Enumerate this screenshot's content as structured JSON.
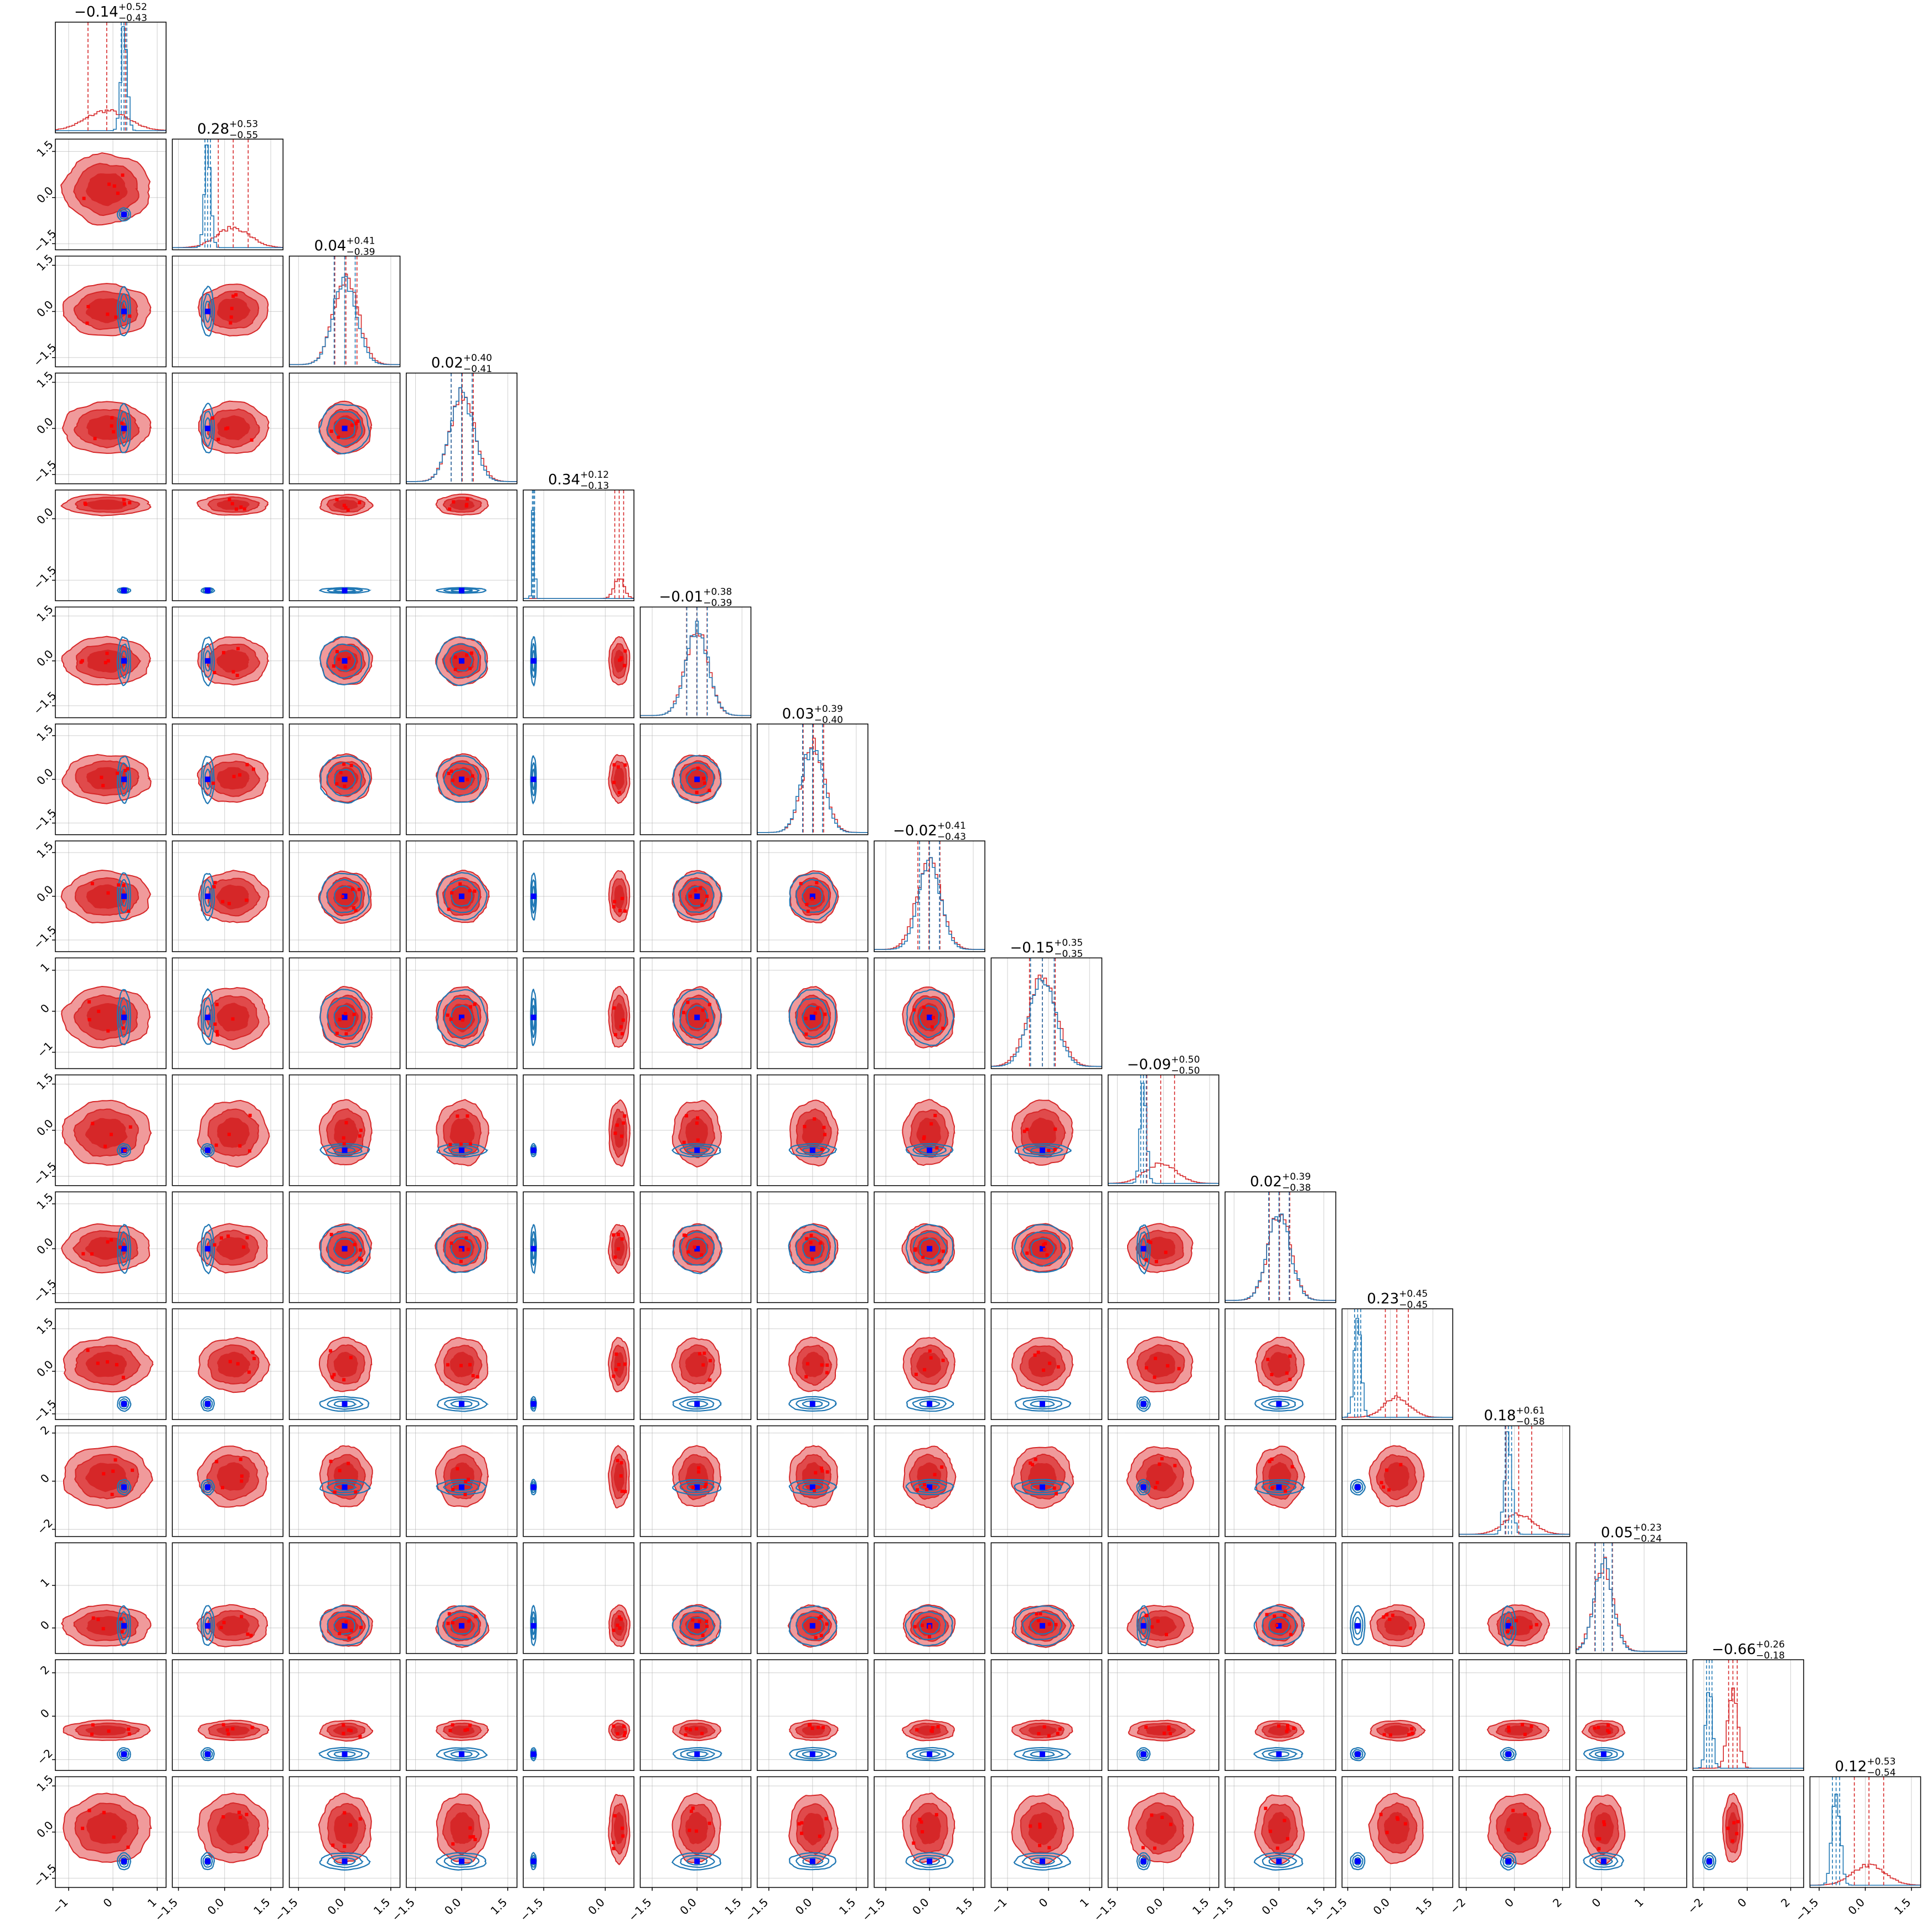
{
  "chart_data": {
    "type": "corner",
    "n_params": 16,
    "series": [
      {
        "name": "",
        "color": "#d62728"
      },
      {
        "name": "",
        "color": "#1f77b4"
      }
    ],
    "marker_color": "#0000ff",
    "grid": true,
    "titles": [
      {
        "median": "−0.14",
        "plus": "+0.52",
        "minus": "−0.43"
      },
      {
        "median": "0.28",
        "plus": "+0.53",
        "minus": "−0.55"
      },
      {
        "median": "0.04",
        "plus": "+0.41",
        "minus": "−0.39"
      },
      {
        "median": "0.02",
        "plus": "+0.40",
        "minus": "−0.41"
      },
      {
        "median": "0.34",
        "plus": "+0.12",
        "minus": "−0.13"
      },
      {
        "median": "−0.01",
        "plus": "+0.38",
        "minus": "−0.39"
      },
      {
        "median": "0.03",
        "plus": "+0.39",
        "minus": "−0.40"
      },
      {
        "median": "−0.02",
        "plus": "+0.41",
        "minus": "−0.43"
      },
      {
        "median": "−0.15",
        "plus": "+0.35",
        "minus": "−0.35"
      },
      {
        "median": "−0.09",
        "plus": "+0.50",
        "minus": "−0.50"
      },
      {
        "median": "0.02",
        "plus": "+0.39",
        "minus": "−0.38"
      },
      {
        "median": "0.23",
        "plus": "+0.45",
        "minus": "−0.45"
      },
      {
        "median": "0.18",
        "plus": "+0.61",
        "minus": "−0.58"
      },
      {
        "median": "0.05",
        "plus": "+0.23",
        "minus": "−0.24"
      },
      {
        "median": "−0.66",
        "plus": "+0.26",
        "minus": "−0.18"
      },
      {
        "median": "0.12",
        "plus": "+0.53",
        "minus": "−0.54"
      }
    ],
    "x_ticks": [
      [
        "−1",
        "0",
        "1"
      ],
      [
        "−1.5",
        "0.0",
        "1.5"
      ],
      [
        "−1.5",
        "0.0",
        "1.5"
      ],
      [
        "−1.5",
        "0.0",
        "1.5"
      ],
      [
        "−1.5",
        "0.0"
      ],
      [
        "−1.5",
        "0.0",
        "1.5"
      ],
      [
        "−1.5",
        "0.0",
        "1.5"
      ],
      [
        "−1.5",
        "0.0",
        "1.5"
      ],
      [
        "−1",
        "0",
        "1"
      ],
      [
        "−1.5",
        "0.0",
        "1.5"
      ],
      [
        "−1.5",
        "0.0",
        "1.5"
      ],
      [
        "−1.5",
        "0.0",
        "1.5"
      ],
      [
        "−2",
        "0",
        "2"
      ],
      [
        "0",
        "1"
      ],
      [
        "−2",
        "0",
        "2"
      ],
      [
        "−1.5",
        "0.0",
        "1.5"
      ]
    ],
    "y_ticks": [
      null,
      [
        "−1.5",
        "0.0",
        "1.5"
      ],
      [
        "−1.5",
        "0.0",
        "1.5"
      ],
      [
        "−1.5",
        "0.0",
        "1.5"
      ],
      [
        "−1.5",
        "0.0"
      ],
      [
        "−1.5",
        "0.0",
        "1.5"
      ],
      [
        "−1.5",
        "0.0",
        "1.5"
      ],
      [
        "−1.5",
        "0.0",
        "1.5"
      ],
      [
        "−1",
        "0",
        "1"
      ],
      [
        "−1.5",
        "0.0",
        "1.5"
      ],
      [
        "−1.5",
        "0.0",
        "1.5"
      ],
      [
        "−1.5",
        "0.0",
        "1.5"
      ],
      [
        "−2",
        "0",
        "2"
      ],
      [
        "0",
        "1"
      ],
      [
        "−2",
        "0",
        "2"
      ],
      [
        "−1.5",
        "0.0",
        "1.5"
      ]
    ],
    "blue_mean": [
      0.25,
      -0.55,
      0.0,
      0.0,
      -1.75,
      0.0,
      0.0,
      0.0,
      -0.15,
      -0.65,
      0.0,
      -1.15,
      -0.25,
      0.05,
      -1.75,
      -0.95
    ],
    "blue_width": [
      0.07,
      0.1,
      0.38,
      0.38,
      0.03,
      0.38,
      0.38,
      0.38,
      0.32,
      0.1,
      0.38,
      0.12,
      0.15,
      0.22,
      0.14,
      0.13
    ],
    "red_mean": [
      -0.14,
      0.28,
      0.04,
      0.02,
      0.34,
      -0.01,
      0.03,
      -0.02,
      -0.15,
      -0.09,
      0.02,
      0.23,
      0.18,
      0.05,
      -0.66,
      0.12
    ],
    "red_width": [
      0.47,
      0.54,
      0.4,
      0.4,
      0.12,
      0.38,
      0.39,
      0.42,
      0.35,
      0.5,
      0.38,
      0.45,
      0.6,
      0.23,
      0.22,
      0.53
    ],
    "range": [
      [
        -1.3,
        1.2
      ],
      [
        -1.7,
        1.9
      ],
      [
        -1.8,
        1.8
      ],
      [
        -1.8,
        1.8
      ],
      [
        -2.0,
        0.7
      ],
      [
        -1.9,
        1.8
      ],
      [
        -1.9,
        1.9
      ],
      [
        -1.9,
        1.9
      ],
      [
        -1.4,
        1.3
      ],
      [
        -1.8,
        1.8
      ],
      [
        -1.8,
        1.9
      ],
      [
        -1.7,
        2.2
      ],
      [
        -2.3,
        2.3
      ],
      [
        -0.6,
        2.0
      ],
      [
        -2.5,
        2.6
      ],
      [
        -1.8,
        1.8
      ]
    ]
  }
}
